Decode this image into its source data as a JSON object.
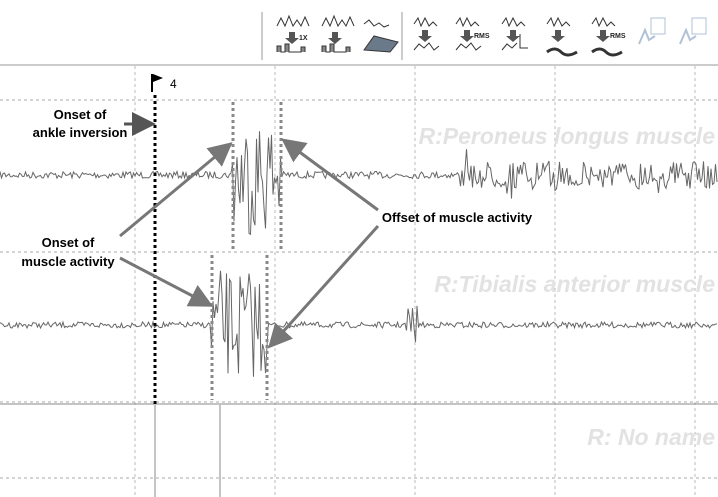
{
  "toolbar": {
    "labels": [
      "1X",
      "RMS",
      "RMS"
    ]
  },
  "ruler": {
    "marker": "4"
  },
  "channels": [
    {
      "name": "R:Peroneus longus muscle"
    },
    {
      "name": "R:Tibialis anterior muscle"
    },
    {
      "name": "R: No name"
    }
  ],
  "annotations": {
    "onset_ankle": [
      "Onset of",
      "ankle inversion"
    ],
    "offset_muscle": "Offset of muscle activity",
    "onset_muscle": [
      "Onset of",
      "muscle activity"
    ]
  }
}
